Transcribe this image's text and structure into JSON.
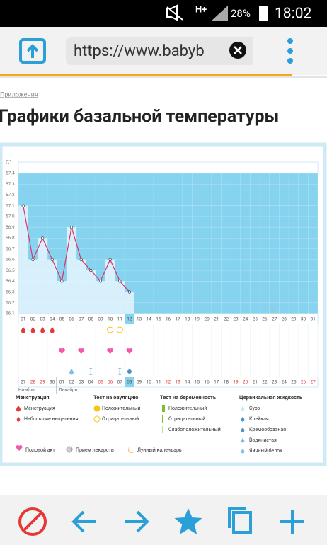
{
  "status_bar": {
    "network": "H+",
    "battery": "28%",
    "time": "18:02"
  },
  "browser": {
    "url": "https://www.babyb"
  },
  "page": {
    "breadcrumb": "Приложения",
    "title": "Графики базальной температуры"
  },
  "chart_data": {
    "type": "line",
    "y_unit": "C°",
    "color": "#e0306a",
    "categories": [
      "01",
      "02",
      "03",
      "04",
      "05",
      "06",
      "07",
      "08",
      "09",
      "10",
      "11",
      "12",
      "13",
      "14",
      "15",
      "16",
      "17",
      "18",
      "19",
      "20",
      "21",
      "22",
      "23",
      "24",
      "25",
      "26",
      "27",
      "28",
      "29",
      "30",
      "31"
    ],
    "values": [
      57.1,
      56.6,
      56.8,
      56.6,
      56.4,
      56.9,
      56.6,
      56.5,
      56.4,
      56.6,
      56.4,
      56.3,
      null,
      null,
      null,
      null,
      null,
      null,
      null,
      null,
      null,
      null,
      null,
      null,
      null,
      null,
      null,
      null,
      null,
      null,
      null
    ],
    "cycle_dates": [
      "27",
      "28",
      "29",
      "30",
      "01",
      "02",
      "03",
      "04",
      "05",
      "06",
      "07",
      "08",
      "09",
      "10",
      "11",
      "12",
      "13",
      "14",
      "15",
      "16",
      "17",
      "18",
      "19",
      "20",
      "21",
      "22",
      "23",
      "24",
      "25",
      "26",
      "27"
    ],
    "months": [
      "Ноябрь",
      "Декабрь"
    ],
    "ylim": [
      56.1,
      57.4
    ],
    "yticks": [
      56.1,
      56.2,
      56.3,
      56.4,
      56.5,
      56.6,
      56.7,
      56.8,
      56.9,
      {
        "value": 57,
        "label": "57.0"
      },
      57.1,
      57.2,
      57.3,
      57.4
    ],
    "grid": true
  },
  "legend": {
    "groups": [
      {
        "title": "Менструация",
        "items": [
          "Менструация",
          "Небольшие выделения"
        ]
      },
      {
        "title": "Тест на овуляцию",
        "items": [
          "Положительный",
          "Отрицательный"
        ]
      },
      {
        "title": "Тест на беременность",
        "items": [
          "Положительный",
          "Отрицательный",
          "Слабоположительный"
        ]
      },
      {
        "title": "Цервикальная жидкость",
        "items": [
          "Сухо",
          "Клейкая",
          "Кремообразная",
          "Водянистая",
          "Яичный белок"
        ]
      }
    ],
    "extras": [
      "Половой акт",
      "Прием лекарств",
      "Лунный календарь"
    ]
  }
}
